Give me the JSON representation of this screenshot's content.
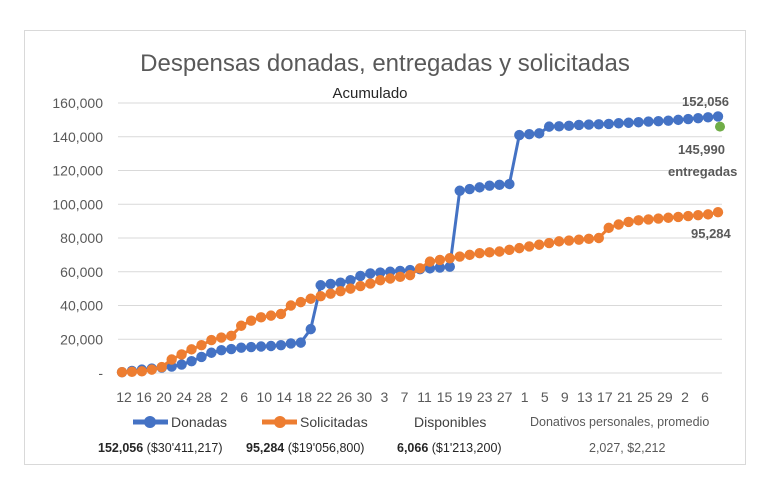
{
  "chart_data": {
    "type": "line",
    "title": "Despensas donadas, entregadas y solicitadas",
    "subtitle": "Acumulado",
    "ylim": [
      0,
      160000
    ],
    "y_ticks": [
      "-",
      "20,000",
      "40,000",
      "60,000",
      "80,000",
      "100,000",
      "120,000",
      "140,000",
      "160,000"
    ],
    "x_tick_labels": [
      "12",
      "16",
      "20",
      "24",
      "28",
      "2",
      "6",
      "10",
      "14",
      "18",
      "22",
      "26",
      "30",
      "3",
      "7",
      "11",
      "15",
      "19",
      "23",
      "27",
      "1",
      "5",
      "9",
      "13",
      "17",
      "21",
      "25",
      "29",
      "2",
      "6"
    ],
    "grid": true,
    "series": [
      {
        "name": "Donadas",
        "color": "#4472c4",
        "values": [
          500,
          1200,
          2000,
          2600,
          3200,
          3800,
          5000,
          7000,
          9500,
          12000,
          13500,
          14200,
          15000,
          15400,
          15700,
          16000,
          16500,
          17500,
          18000,
          26000,
          52000,
          52800,
          53500,
          55000,
          57500,
          59000,
          59500,
          60000,
          60500,
          61000,
          61500,
          62000,
          62500,
          63000,
          108000,
          109000,
          110000,
          111000,
          111500,
          112000,
          141000,
          141500,
          142000,
          146000,
          146200,
          146500,
          147000,
          147200,
          147400,
          147600,
          148000,
          148300,
          148600,
          149000,
          149200,
          149500,
          150000,
          150500,
          151000,
          151500,
          152056
        ]
      },
      {
        "name": "Solicitadas",
        "color": "#ed7d31",
        "values": [
          500,
          700,
          1000,
          2000,
          3500,
          8000,
          11000,
          14000,
          16500,
          19500,
          21000,
          22000,
          28000,
          31000,
          33000,
          34000,
          35000,
          40000,
          42000,
          44000,
          45500,
          47000,
          48500,
          50000,
          51500,
          53000,
          55000,
          56000,
          57000,
          58000,
          62000,
          66000,
          67000,
          68000,
          69000,
          70000,
          71000,
          71500,
          72000,
          73000,
          74000,
          75000,
          76000,
          77000,
          78000,
          78500,
          79000,
          79500,
          80000,
          86000,
          88000,
          89500,
          90500,
          91000,
          91500,
          92000,
          92500,
          93000,
          93500,
          94000,
          95284
        ]
      }
    ],
    "delivered_point": {
      "name": "entregadas",
      "value": 145990,
      "color": "#70ad47"
    },
    "annotations": {
      "donadas_final": "152,056",
      "entregadas_value": "145,990",
      "entregadas_label": "entregadas",
      "solicitadas_final": "95,284"
    },
    "legend": {
      "donadas": "Donadas",
      "solicitadas": "Solicitadas",
      "disponibles": "Disponibles",
      "donativos": "Donativos personales, promedio"
    },
    "stats": {
      "donadas_count": "152,056",
      "donadas_amount": "($30'411,217)",
      "solicitadas_count": "95,284",
      "solicitadas_amount": "($19'056,800)",
      "disponibles_count": "6,066",
      "disponibles_amount": "($1'213,200)",
      "donativos_value": "2,027, $2,212"
    }
  }
}
